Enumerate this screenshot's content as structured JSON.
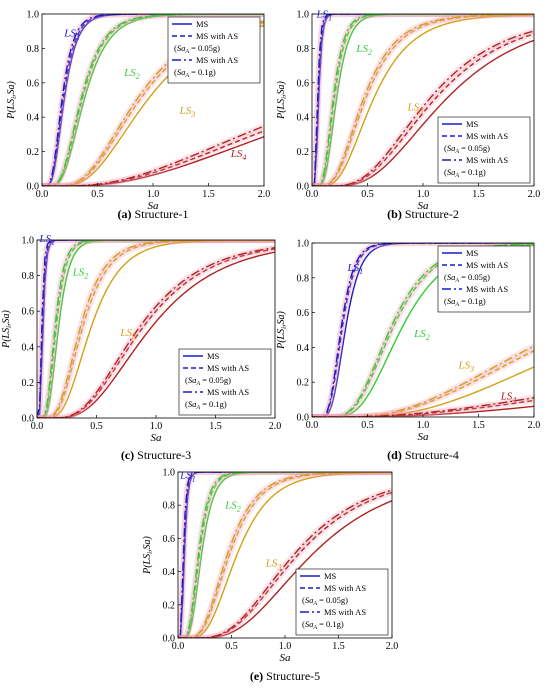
{
  "figure": {
    "chart_data": [
      {
        "type": "line",
        "caption_letter": "(a)",
        "caption_text": "Structure-1",
        "xlabel": "Sa",
        "ylabel": "P(LS",
        "xlim": [
          0,
          2
        ],
        "ylim": [
          0,
          1
        ],
        "x_ticks": [
          "0.0",
          "0.5",
          "1.0",
          "1.5",
          "2.0"
        ],
        "y_ticks": [
          "0.0",
          "0.2",
          "0.4",
          "0.6",
          "0.8",
          "1.0"
        ],
        "legend": {
          "placement": "top-right",
          "entries": [
            "MS",
            "MS with AS",
            "(Sa_A = 0.05g)",
            "MS with AS",
            "(Sa_A = 0.1g)"
          ]
        },
        "limit_states": [
          {
            "label": "LS",
            "sub": "1",
            "color": "#1a1acc",
            "median": 0.2,
            "beta": 0.45,
            "as_median": [
              0.19,
              0.18
            ]
          },
          {
            "label": "LS",
            "sub": "2",
            "color": "#33cc33",
            "median": 0.38,
            "beta": 0.45,
            "as_median": [
              0.36,
              0.35
            ]
          },
          {
            "label": "LS",
            "sub": "3",
            "color": "#d4a017",
            "median": 0.95,
            "beta": 0.5,
            "as_median": [
              0.88,
              0.85
            ]
          },
          {
            "label": "LS",
            "sub": "4",
            "color": "#b22222",
            "median": 3.0,
            "beta": 0.72,
            "as_median": [
              2.8,
              2.65
            ]
          }
        ]
      },
      {
        "type": "line",
        "caption_letter": "(b)",
        "caption_text": "Structure-2",
        "xlabel": "Sa",
        "ylabel": "P(LS",
        "xlim": [
          0,
          2
        ],
        "ylim": [
          0,
          1
        ],
        "x_ticks": [
          "0.0",
          "0.5",
          "1.0",
          "1.5",
          "2.0"
        ],
        "y_ticks": [
          "0.0",
          "0.2",
          "0.4",
          "0.6",
          "0.8",
          "1.0"
        ],
        "legend": {
          "placement": "bottom-right",
          "entries": [
            "MS",
            "MS with AS",
            "(Sa_A = 0.05g)",
            "MS with AS",
            "(Sa_A = 0.1g)"
          ]
        },
        "limit_states": [
          {
            "label": "LS",
            "sub": "1",
            "color": "#1a1acc",
            "median": 0.06,
            "beta": 0.4,
            "as_median": [
              0.055,
              0.05
            ]
          },
          {
            "label": "LS",
            "sub": "2",
            "color": "#33cc33",
            "median": 0.22,
            "beta": 0.4,
            "as_median": [
              0.2,
              0.19
            ]
          },
          {
            "label": "LS",
            "sub": "3",
            "color": "#d4a017",
            "median": 0.55,
            "beta": 0.5,
            "as_median": [
              0.48,
              0.46
            ]
          },
          {
            "label": "LS",
            "sub": "4",
            "color": "#b22222",
            "median": 1.2,
            "beta": 0.5,
            "as_median": [
              1.1,
              1.05
            ]
          }
        ]
      },
      {
        "type": "line",
        "caption_letter": "(c)",
        "caption_text": "Structure-3",
        "xlabel": "Sa",
        "ylabel": "P(LS",
        "xlim": [
          0,
          2
        ],
        "ylim": [
          0,
          1
        ],
        "x_ticks": [
          "0.0",
          "0.5",
          "1.0",
          "1.5",
          "2.0"
        ],
        "y_ticks": [
          "0.0",
          "0.2",
          "0.4",
          "0.6",
          "0.8",
          "1.0"
        ],
        "legend": {
          "placement": "bottom-right",
          "entries": [
            "MS",
            "MS with AS",
            "(Sa_A = 0.05g)",
            "MS with AS",
            "(Sa_A = 0.1g)"
          ]
        },
        "limit_states": [
          {
            "label": "LS",
            "sub": "1",
            "color": "#1a1acc",
            "median": 0.05,
            "beta": 0.4,
            "as_median": [
              0.045,
              0.04
            ]
          },
          {
            "label": "LS",
            "sub": "2",
            "color": "#33cc33",
            "median": 0.18,
            "beta": 0.4,
            "as_median": [
              0.16,
              0.15
            ]
          },
          {
            "label": "LS",
            "sub": "3",
            "color": "#d4a017",
            "median": 0.45,
            "beta": 0.45,
            "as_median": [
              0.38,
              0.36
            ]
          },
          {
            "label": "LS",
            "sub": "4",
            "color": "#b22222",
            "median": 0.95,
            "beta": 0.5,
            "as_median": [
              0.88,
              0.85
            ]
          }
        ]
      },
      {
        "type": "line",
        "caption_letter": "(d)",
        "caption_text": "Structure-4",
        "xlabel": "Sa",
        "ylabel": "P(LS",
        "xlim": [
          0,
          2
        ],
        "ylim": [
          0,
          1
        ],
        "x_ticks": [
          "0.0",
          "0.5",
          "1.0",
          "1.5",
          "2.0"
        ],
        "y_ticks": [
          "0.0",
          "0.2",
          "0.4",
          "0.6",
          "0.8",
          "1.0"
        ],
        "legend": {
          "placement": "top-right",
          "entries": [
            "MS",
            "MS with AS",
            "(Sa_A = 0.05g)",
            "MS with AS",
            "(Sa_A = 0.1g)"
          ]
        },
        "limit_states": [
          {
            "label": "LS",
            "sub": "1",
            "color": "#1a1acc",
            "median": 0.3,
            "beta": 0.35,
            "as_median": [
              0.27,
              0.26
            ]
          },
          {
            "label": "LS",
            "sub": "2",
            "color": "#33cc33",
            "median": 0.8,
            "beta": 0.4,
            "as_median": [
              0.72,
              0.7
            ]
          },
          {
            "label": "LS",
            "sub": "3",
            "color": "#d4a017",
            "median": 2.8,
            "beta": 0.6,
            "as_median": [
              2.4,
              2.3
            ]
          },
          {
            "label": "LS",
            "sub": "4",
            "color": "#b22222",
            "median": 8.0,
            "beta": 0.9,
            "as_median": [
              6.5,
              6.0
            ]
          }
        ]
      },
      {
        "type": "line",
        "caption_letter": "(e)",
        "caption_text": "Structure-5",
        "xlabel": "Sa",
        "ylabel": "P(LS",
        "xlim": [
          0,
          2
        ],
        "ylim": [
          0,
          1
        ],
        "x_ticks": [
          "0.0",
          "0.5",
          "1.0",
          "1.5",
          "2.0"
        ],
        "y_ticks": [
          "0.0",
          "0.2",
          "0.4",
          "0.6",
          "0.8",
          "1.0"
        ],
        "legend": {
          "placement": "bottom-right",
          "entries": [
            "MS",
            "MS with AS",
            "(Sa_A = 0.05g)",
            "MS with AS",
            "(Sa_A = 0.1g)"
          ]
        },
        "limit_states": [
          {
            "label": "LS",
            "sub": "1",
            "color": "#1a1acc",
            "median": 0.06,
            "beta": 0.4,
            "as_median": [
              0.055,
              0.05
            ]
          },
          {
            "label": "LS",
            "sub": "2",
            "color": "#33cc33",
            "median": 0.22,
            "beta": 0.4,
            "as_median": [
              0.2,
              0.19
            ]
          },
          {
            "label": "LS",
            "sub": "3",
            "color": "#d4a017",
            "median": 0.55,
            "beta": 0.45,
            "as_median": [
              0.48,
              0.46
            ]
          },
          {
            "label": "LS",
            "sub": "4",
            "color": "#b22222",
            "median": 1.25,
            "beta": 0.5,
            "as_median": [
              1.12,
              1.08
            ]
          }
        ]
      }
    ]
  }
}
